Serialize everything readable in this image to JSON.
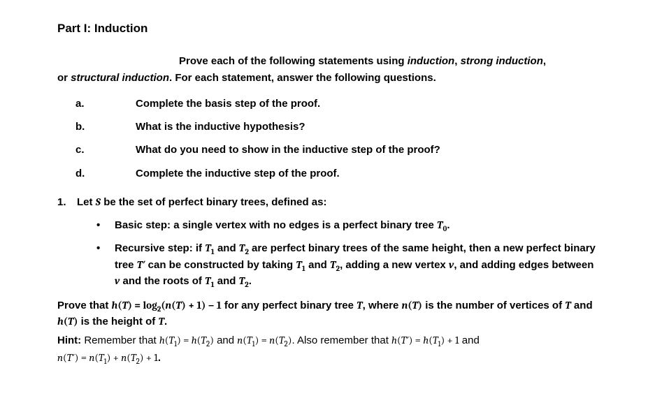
{
  "title": "Part I: Induction",
  "intro": {
    "line1_lead": "Prove each of the following statements using ",
    "kw_induction": "induction",
    "sep1": ", ",
    "kw_strong": "strong induction",
    "sep2": ",",
    "line2_a": "or ",
    "kw_structural": "structural induction",
    "line2_b": ". For each statement, answer the following questions."
  },
  "steps": {
    "a": {
      "label": "a.",
      "text": "Complete the basis step of the proof."
    },
    "b": {
      "label": "b.",
      "text": "What is the inductive hypothesis?"
    },
    "c": {
      "label": "c.",
      "text": "What do you need to show in the inductive step of the proof?"
    },
    "d": {
      "label": "d.",
      "text": "Complete the inductive step of the proof."
    }
  },
  "q1": {
    "num": "1.",
    "lead_a": "Let ",
    "S": "S",
    "lead_b": " be the set of perfect binary trees, defined as:",
    "bullet_symbol": "•",
    "bullet1": {
      "a": "Basic step: a single vertex with no edges is a perfect binary tree ",
      "T": "T",
      "sub0": "0",
      "dot": "."
    },
    "bullet2": {
      "a": "Recursive step: if ",
      "T": "T",
      "sub1": "1",
      "and": " and ",
      "sub2": "2",
      "b": " are perfect binary trees of the same height, then a new perfect binary tree ",
      "Tp": "T′",
      "c": " can be constructed by taking ",
      "d": ", adding a new vertex ",
      "v": "v",
      "e": ", and adding edges between ",
      "f": " and the roots of ",
      "dot": "."
    },
    "stmt": {
      "a": "Prove that ",
      "hT": "h",
      "lp": "(",
      "T": "T",
      "rp": ")",
      "eq": " = ",
      "log": "log",
      "sub2": "2",
      "nT_a": "(",
      "n": "n",
      "nT_b": "(",
      "nT_c": ") + 1) − 1",
      "b": " for any perfect binary tree ",
      "c": ", where ",
      "d": " is the number of vertices of ",
      "e": " and ",
      "f": " is the height of ",
      "dot": "."
    },
    "hint": {
      "label": "Hint:",
      "a": " Remember that ",
      "h": "h",
      "lp": "(",
      "T": "T",
      "rp": ")",
      "sub1": "1",
      "sub2": "2",
      "eq": " = ",
      "and": " and ",
      "n": "n",
      "b": ". Also remember that ",
      "Tp": "T′",
      "plus1": " + 1",
      "plus": " + ",
      "dot": "."
    }
  }
}
